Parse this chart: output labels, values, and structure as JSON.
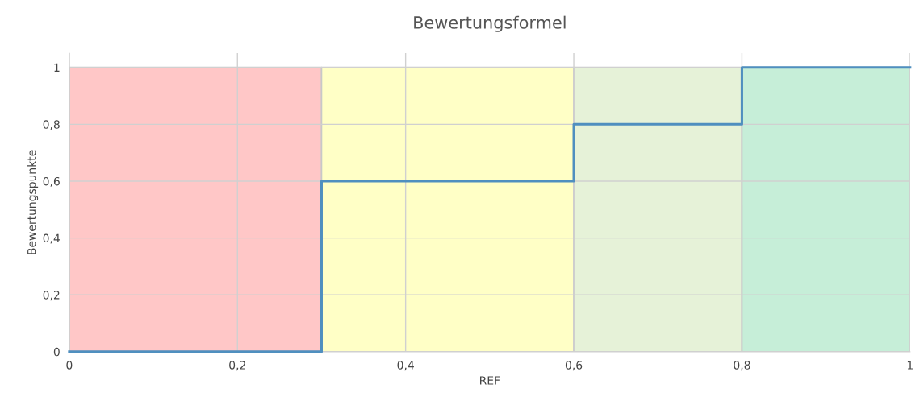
{
  "chart_data": {
    "type": "step",
    "title": "Bewertungsformel",
    "xlabel": "REF",
    "ylabel": "Bewertungspunkte",
    "xlim": [
      0,
      1
    ],
    "xticks": [
      0,
      {
        "value": 0.2,
        "label": "0,2"
      },
      {
        "value": 0.4,
        "label": "0,4"
      },
      {
        "value": 0.6,
        "label": "0,6"
      },
      {
        "value": 0.8,
        "label": "0,8"
      },
      1
    ],
    "ylim": [
      0,
      1.05
    ],
    "yticks": [
      0,
      {
        "value": 0.2,
        "label": "0,2"
      },
      {
        "value": 0.4,
        "label": "0,4"
      },
      {
        "value": 0.6,
        "label": "0,6"
      },
      {
        "value": 0.8,
        "label": "0,8"
      },
      1
    ],
    "grid": true,
    "legend": false,
    "series": [
      {
        "type": "area",
        "color": "#ffc7c7",
        "x": [
          0,
          0.3
        ],
        "values": [
          1,
          1
        ]
      },
      {
        "type": "area",
        "color": "#ffffc6",
        "x": [
          0.3,
          0.6
        ],
        "values": [
          1,
          1
        ]
      },
      {
        "type": "area",
        "color": "#e6f2d8",
        "x": [
          0.6,
          0.8
        ],
        "values": [
          1,
          1
        ]
      },
      {
        "type": "area",
        "color": "#c6eed8",
        "x": [
          0.8,
          1
        ],
        "values": [
          1,
          1
        ]
      },
      {
        "color": "#4f8fbf",
        "x": [
          0,
          0.3,
          0.6,
          0.8,
          1
        ],
        "values": [
          0,
          0.6,
          0.8,
          1,
          1
        ]
      }
    ]
  }
}
